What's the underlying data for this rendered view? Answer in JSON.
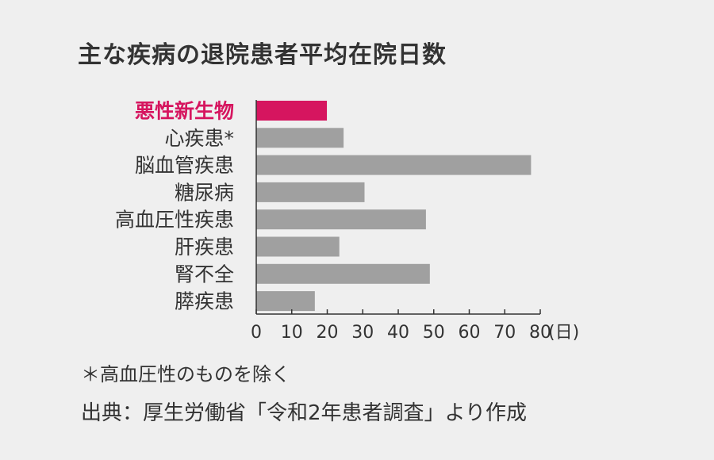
{
  "title": "主な疾病の退院患者平均在院日数",
  "chart_data": {
    "type": "bar",
    "orientation": "horizontal",
    "categories": [
      "悪性新生物",
      "心疾患*",
      "脳血管疾患",
      "糖尿病",
      "高血圧性疾患",
      "肝疾患",
      "腎不全",
      "膵疾患"
    ],
    "values": [
      19.9,
      24.6,
      77.4,
      30.5,
      47.8,
      23.4,
      48.9,
      16.5
    ],
    "highlight_index": 0,
    "xlim": [
      0,
      80
    ],
    "xticks": [
      "0",
      "10",
      "20",
      "30",
      "40",
      "50",
      "60",
      "70",
      "80"
    ],
    "unit_label": "(日)",
    "grid": false,
    "colors": {
      "bar": "#a0a0a0",
      "highlight": "#d6155f",
      "axis": "#333333"
    }
  },
  "note": "＊高血圧性のものを除く",
  "source": "出典：厚生労働省「令和2年患者調査」より作成"
}
